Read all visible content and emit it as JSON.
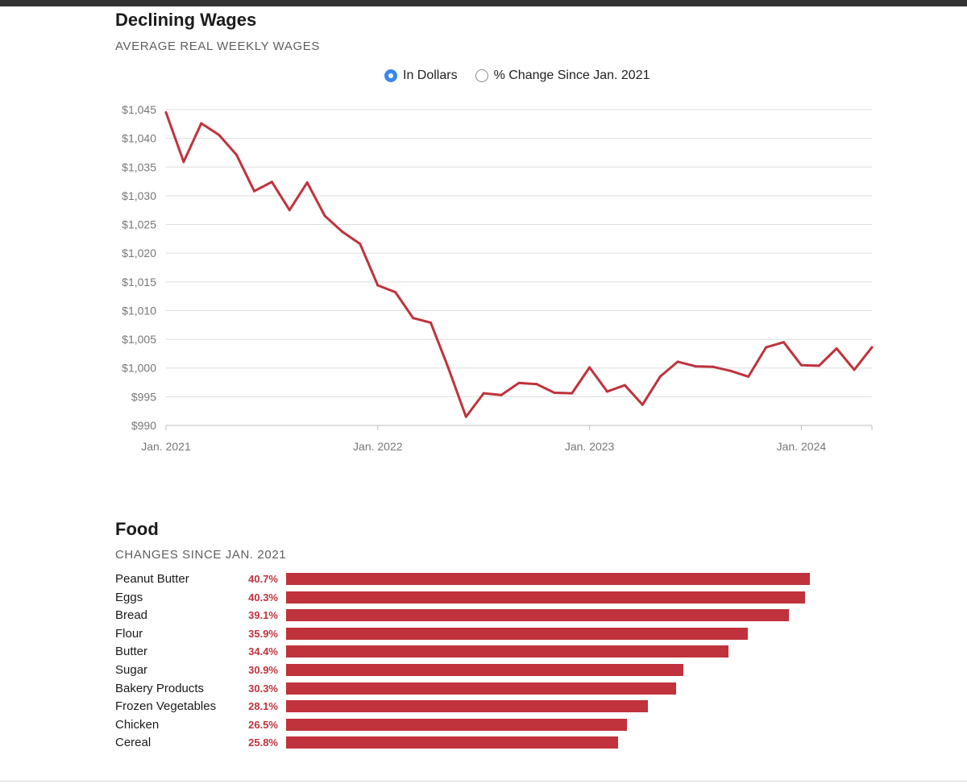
{
  "colors": {
    "accent": "#c0323c",
    "radio_selected": "#3a86ef",
    "grid": "#dddddd"
  },
  "wages": {
    "title": "Declining Wages",
    "subtitle": "AVERAGE REAL WEEKLY WAGES",
    "toggle": [
      {
        "label": "In Dollars",
        "selected": true
      },
      {
        "label": "% Change Since Jan. 2021",
        "selected": false
      }
    ]
  },
  "food": {
    "title": "Food",
    "subtitle": "CHANGES SINCE JAN. 2021"
  },
  "chart_data": [
    {
      "type": "line",
      "title": "Declining Wages",
      "subtitle": "AVERAGE REAL WEEKLY WAGES",
      "x_tick_labels": [
        "Jan. 2021",
        "Jan. 2022",
        "Jan. 2023",
        "Jan. 2024"
      ],
      "y_tick_labels": [
        "$990",
        "$995",
        "$1,000",
        "$1,005",
        "$1,010",
        "$1,015",
        "$1,020",
        "$1,025",
        "$1,030",
        "$1,035",
        "$1,040",
        "$1,045"
      ],
      "ylim": [
        990,
        1045
      ],
      "xlim": [
        "2021-01",
        "2024-05"
      ],
      "grid": true,
      "series": [
        {
          "x": [
            "2021-01",
            "2021-02",
            "2021-03",
            "2021-04",
            "2021-05",
            "2021-06",
            "2021-07",
            "2021-08",
            "2021-09",
            "2021-10",
            "2021-11",
            "2021-12",
            "2022-01",
            "2022-02",
            "2022-03",
            "2022-04",
            "2022-05",
            "2022-06",
            "2022-07",
            "2022-08",
            "2022-09",
            "2022-10",
            "2022-11",
            "2022-12",
            "2023-01",
            "2023-02",
            "2023-03",
            "2023-04",
            "2023-05",
            "2023-06",
            "2023-07",
            "2023-08",
            "2023-09",
            "2023-10",
            "2023-11",
            "2023-12",
            "2024-01",
            "2024-02",
            "2024-03",
            "2024-04",
            "2024-05"
          ],
          "values": [
            1044.5,
            1035.9,
            1042.6,
            1040.6,
            1037.1,
            1030.8,
            1032.4,
            1027.5,
            1032.3,
            1026.5,
            1023.7,
            1021.6,
            1014.4,
            1013.2,
            1008.7,
            1007.9,
            1000.0,
            991.5,
            995.6,
            995.3,
            997.4,
            997.2,
            995.7,
            995.6,
            1000.1,
            995.9,
            997.0,
            993.6,
            998.5,
            1001.1,
            1000.3,
            1000.2,
            999.5,
            998.5,
            1003.6,
            1004.5,
            1000.5,
            1000.4,
            1003.4,
            999.7,
            1003.6
          ]
        }
      ]
    },
    {
      "type": "bar",
      "orientation": "horizontal",
      "title": "Food",
      "subtitle": "CHANGES SINCE JAN. 2021",
      "categories": [
        "Peanut Butter",
        "Eggs",
        "Bread",
        "Flour",
        "Butter",
        "Sugar",
        "Bakery Products",
        "Frozen Vegetables",
        "Chicken",
        "Cereal"
      ],
      "values": [
        40.7,
        40.3,
        39.1,
        35.9,
        34.4,
        30.9,
        30.3,
        28.1,
        26.5,
        25.8
      ],
      "value_labels": [
        "40.7%",
        "40.3%",
        "39.1%",
        "35.9%",
        "34.4%",
        "30.9%",
        "30.3%",
        "28.1%",
        "26.5%",
        "25.8%"
      ]
    }
  ]
}
